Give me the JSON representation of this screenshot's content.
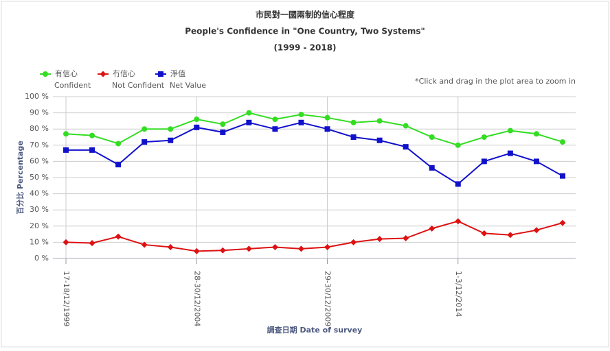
{
  "chart_data": {
    "type": "line",
    "title": "市民對一國兩制的信心程度",
    "subtitle": "People's Confidence in \"One Country, Two Systems\"",
    "period": "(1999 - 2018)",
    "note": "*Click and drag in the plot area to zoom in",
    "y_label": "百分比 Percentage",
    "x_label": "調查日期 Date of survey",
    "categories": [
      "17-18/12/1999",
      null,
      null,
      null,
      null,
      "28-30/12/2004",
      null,
      null,
      null,
      null,
      "29-30/12/2009",
      null,
      null,
      null,
      null,
      "1-3/12/2014",
      null,
      null,
      null,
      null
    ],
    "series": [
      {
        "name": "有信心",
        "label": "Confident",
        "color": "#33dd22",
        "marker": "circle",
        "values": [
          77,
          76,
          71,
          80,
          80,
          86,
          83,
          90,
          86,
          89,
          87,
          84,
          85,
          82,
          75,
          70,
          75,
          79,
          77,
          72
        ]
      },
      {
        "name": "冇信心",
        "label": "Not Confident",
        "color": "#dd1111",
        "marker": "diamond",
        "values": [
          10,
          9.5,
          13.5,
          8.5,
          7,
          4.5,
          5,
          6,
          7,
          6,
          7,
          10,
          12,
          12.5,
          18.5,
          23,
          15.5,
          14.5,
          17.5,
          22
        ]
      },
      {
        "name": "淨值",
        "label": "Net Value",
        "color": "#1111cc",
        "marker": "square",
        "values": [
          67,
          67,
          58,
          72,
          73,
          81,
          78,
          84,
          80,
          84,
          80,
          75,
          73,
          69,
          56,
          46,
          60,
          65,
          60,
          51
        ]
      }
    ],
    "ylim": [
      0,
      100
    ],
    "yticks": [
      {
        "value": 0,
        "label": "0 %"
      },
      {
        "value": 10,
        "label": "10 %"
      },
      {
        "value": 20,
        "label": "20 %"
      },
      {
        "value": 30,
        "label": "30 %"
      },
      {
        "value": 40,
        "label": "40 %"
      },
      {
        "value": 50,
        "label": "50 %"
      },
      {
        "value": 60,
        "label": "60 %"
      },
      {
        "value": 70,
        "label": "70 %"
      },
      {
        "value": 80,
        "label": "80 %"
      },
      {
        "value": 90,
        "label": "90 %"
      },
      {
        "value": 100,
        "label": "100 %"
      }
    ],
    "grid": true
  }
}
